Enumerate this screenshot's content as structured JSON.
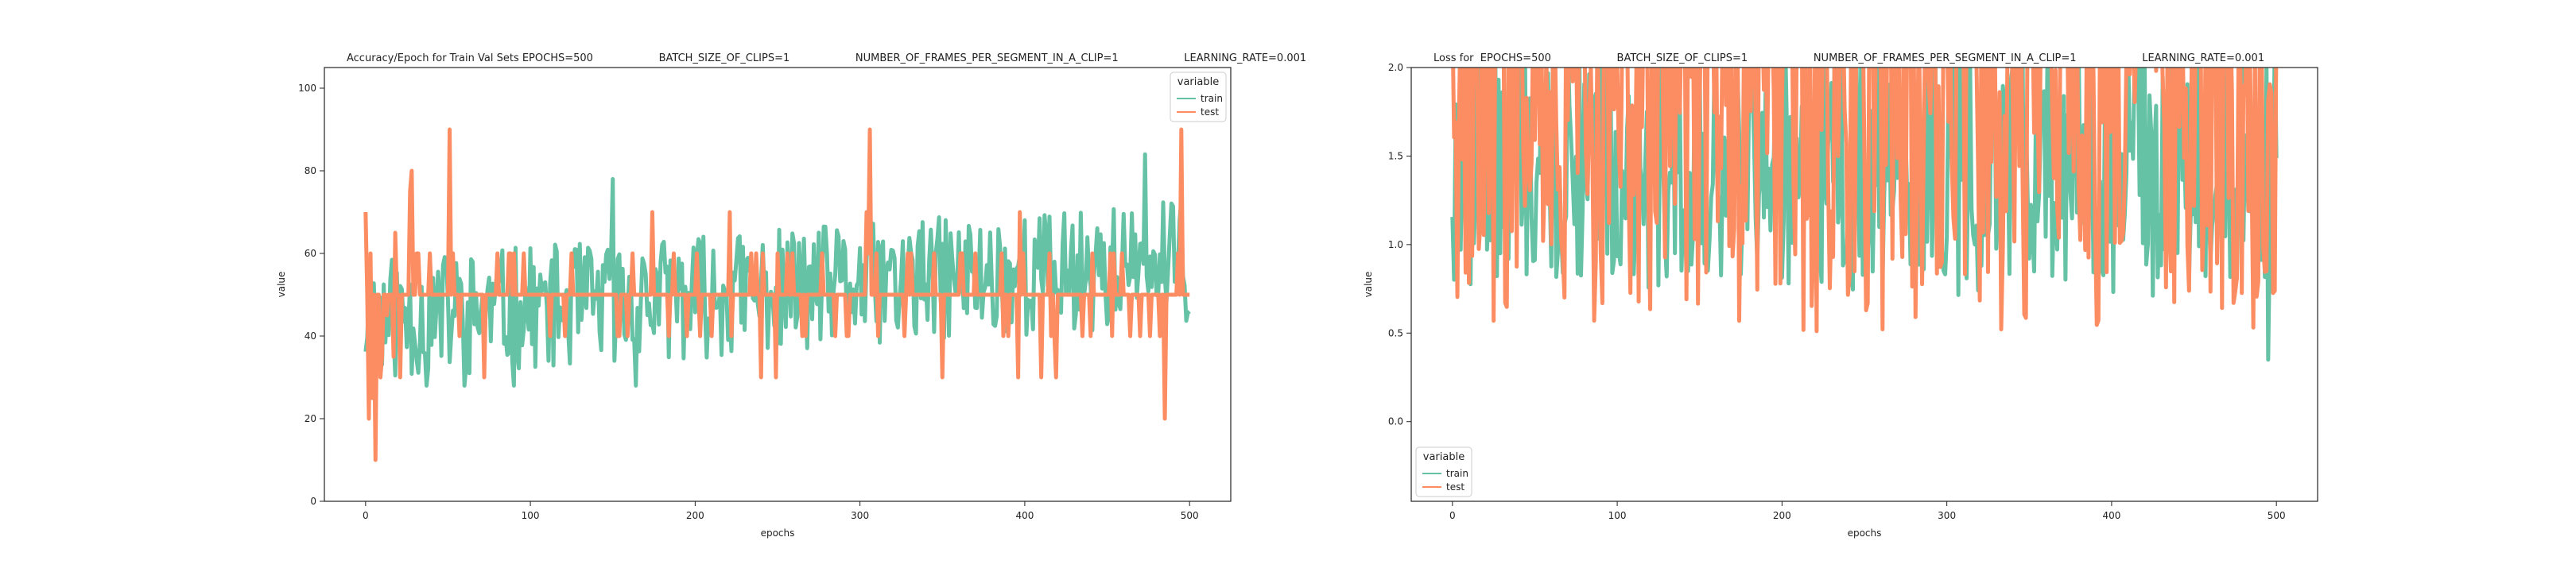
{
  "chart_data": [
    {
      "type": "line",
      "title": "Accuracy/Epoch for Train Val Sets EPOCHS=500                    BATCH_SIZE_OF_CLIPS=1                    NUMBER_OF_FRAMES_PER_SEGMENT_IN_A_CLIP=1                    LEARNING_RATE=0.001",
      "xlabel": "epochs",
      "ylabel": "value",
      "xlim": [
        -25,
        525
      ],
      "ylim": [
        0,
        105
      ],
      "xticks": [
        0,
        100,
        200,
        300,
        400,
        500
      ],
      "yticks": [
        0,
        20,
        40,
        60,
        80,
        100
      ],
      "legend": {
        "title": "variable",
        "placement": "top-right"
      },
      "series": [
        {
          "name": "train",
          "color": "#66c2a5",
          "seed": 11,
          "mode": "acc_train"
        },
        {
          "name": "test",
          "color": "#fc8d62",
          "seed": 29,
          "mode": "acc_test"
        }
      ]
    },
    {
      "type": "line",
      "title": "Loss for  EPOCHS=500                    BATCH_SIZE_OF_CLIPS=1                    NUMBER_OF_FRAMES_PER_SEGMENT_IN_A_CLIP=1                    LEARNING_RATE=0.001",
      "xlabel": "epochs",
      "ylabel": "value",
      "xlim": [
        -25,
        525
      ],
      "ylim": [
        -0.45,
        2.0
      ],
      "xticks": [
        0,
        100,
        200,
        300,
        400,
        500
      ],
      "yticks": [
        0.0,
        0.5,
        1.0,
        1.5,
        2.0
      ],
      "yticklabels": [
        "0.0",
        "0.5",
        "1.0",
        "1.5",
        "2.0"
      ],
      "legend": {
        "title": "variable",
        "placement": "bottom-left"
      },
      "series": [
        {
          "name": "train",
          "color": "#66c2a5",
          "seed": 47,
          "mode": "loss_train"
        },
        {
          "name": "test",
          "color": "#fc8d62",
          "seed": 83,
          "mode": "loss_test"
        }
      ]
    }
  ]
}
